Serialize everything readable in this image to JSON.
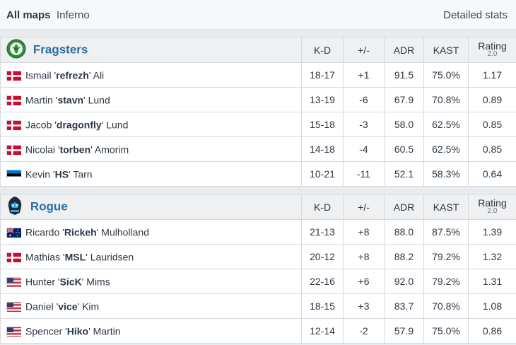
{
  "tabs": {
    "all_maps": "All maps",
    "inferno": "Inferno",
    "detailed": "Detailed stats"
  },
  "columns": {
    "kd": "K-D",
    "pm": "+/-",
    "adr": "ADR",
    "kast": "KAST",
    "rating": "Rating",
    "rating_sub": "2.0"
  },
  "teams": [
    {
      "name": "Fragsters",
      "logo": "fragsters-logo-icon",
      "players": [
        {
          "flag": "denmark-flag-icon",
          "first": "Ismail '",
          "nick": "refrezh",
          "last": "' Ali",
          "kd": "18-17",
          "pm": "+1",
          "adr": "91.5",
          "kast": "75.0%",
          "rating": "1.17"
        },
        {
          "flag": "denmark-flag-icon",
          "first": "Martin '",
          "nick": "stavn",
          "last": "' Lund",
          "kd": "13-19",
          "pm": "-6",
          "adr": "67.9",
          "kast": "70.8%",
          "rating": "0.89"
        },
        {
          "flag": "denmark-flag-icon",
          "first": "Jacob '",
          "nick": "dragonfly",
          "last": "' Lund",
          "kd": "15-18",
          "pm": "-3",
          "adr": "58.0",
          "kast": "62.5%",
          "rating": "0.85"
        },
        {
          "flag": "denmark-flag-icon",
          "first": "Nicolai '",
          "nick": "torben",
          "last": "' Amorim",
          "kd": "14-18",
          "pm": "-4",
          "adr": "60.5",
          "kast": "62.5%",
          "rating": "0.85"
        },
        {
          "flag": "estonia-flag-icon",
          "first": "Kevin '",
          "nick": "HS",
          "last": "' Tarn",
          "kd": "10-21",
          "pm": "-11",
          "adr": "52.1",
          "kast": "58.3%",
          "rating": "0.64"
        }
      ]
    },
    {
      "name": "Rogue",
      "logo": "rogue-logo-icon",
      "players": [
        {
          "flag": "australia-flag-icon",
          "first": "Ricardo '",
          "nick": "Rickeh",
          "last": "' Mulholland",
          "kd": "21-13",
          "pm": "+8",
          "adr": "88.0",
          "kast": "87.5%",
          "rating": "1.39"
        },
        {
          "flag": "denmark-flag-icon",
          "first": "Mathias '",
          "nick": "MSL",
          "last": "' Lauridsen",
          "kd": "20-12",
          "pm": "+8",
          "adr": "88.2",
          "kast": "79.2%",
          "rating": "1.32"
        },
        {
          "flag": "usa-flag-icon",
          "first": "Hunter '",
          "nick": "SicK",
          "last": "' Mims",
          "kd": "22-16",
          "pm": "+6",
          "adr": "92.0",
          "kast": "79.2%",
          "rating": "1.31"
        },
        {
          "flag": "usa-flag-icon",
          "first": "Daniel '",
          "nick": "vice",
          "last": "' Kim",
          "kd": "18-15",
          "pm": "+3",
          "adr": "83.7",
          "kast": "70.8%",
          "rating": "1.08"
        },
        {
          "flag": "usa-flag-icon",
          "first": "Spencer '",
          "nick": "Hiko",
          "last": "' Martin",
          "kd": "12-14",
          "pm": "-2",
          "adr": "57.9",
          "kast": "75.0%",
          "rating": "0.86"
        }
      ]
    }
  ],
  "colors": {
    "positive": "#2f8a2f",
    "negative": "#b52b2b",
    "team_name": "#2b6ea0"
  }
}
